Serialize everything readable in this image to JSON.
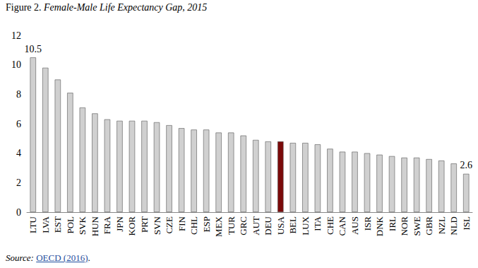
{
  "chart_data": {
    "type": "bar",
    "figure_label": "Figure 2.",
    "title": "Female-Male Life Expectancy Gap, 2015",
    "source": {
      "prefix": "Source:",
      "link": "OECD (2016)",
      "suffix": "."
    },
    "categories": [
      "LTU",
      "LVA",
      "EST",
      "POL",
      "SVK",
      "HUN",
      "FRA",
      "JPN",
      "KOR",
      "PRT",
      "SVN",
      "CZE",
      "FIN",
      "CHL",
      "ESP",
      "MEX",
      "TUR",
      "GRC",
      "AUT",
      "DEU",
      "USA",
      "BEL",
      "LUX",
      "ITA",
      "CHE",
      "CAN",
      "AUS",
      "ISR",
      "DNK",
      "IRL",
      "NOR",
      "SWE",
      "GBR",
      "NZL",
      "NLD",
      "ISL"
    ],
    "values": [
      10.5,
      9.8,
      9.0,
      8.1,
      7.1,
      6.7,
      6.3,
      6.2,
      6.2,
      6.2,
      6.1,
      5.9,
      5.7,
      5.6,
      5.6,
      5.4,
      5.4,
      5.2,
      4.9,
      4.8,
      4.8,
      4.7,
      4.7,
      4.6,
      4.3,
      4.1,
      4.1,
      4.0,
      3.9,
      3.8,
      3.7,
      3.7,
      3.6,
      3.5,
      3.3,
      2.6
    ],
    "colors": [
      "#d0d0d0",
      "#d0d0d0",
      "#d0d0d0",
      "#d0d0d0",
      "#d0d0d0",
      "#d0d0d0",
      "#d0d0d0",
      "#d0d0d0",
      "#d0d0d0",
      "#d0d0d0",
      "#d0d0d0",
      "#d0d0d0",
      "#d0d0d0",
      "#d0d0d0",
      "#d0d0d0",
      "#d0d0d0",
      "#d0d0d0",
      "#d0d0d0",
      "#d0d0d0",
      "#d0d0d0",
      "#7b0a0a",
      "#d0d0d0",
      "#d0d0d0",
      "#d0d0d0",
      "#d0d0d0",
      "#d0d0d0",
      "#d0d0d0",
      "#d0d0d0",
      "#d0d0d0",
      "#d0d0d0",
      "#d0d0d0",
      "#d0d0d0",
      "#d0d0d0",
      "#d0d0d0",
      "#d0d0d0",
      "#d0d0d0"
    ],
    "annotations": [
      {
        "x": "LTU",
        "text": "10.5"
      },
      {
        "x": "ISL",
        "text": "2.6"
      }
    ],
    "ylim": [
      0,
      12
    ],
    "yticks": [
      0,
      2,
      4,
      6,
      8,
      10,
      12
    ],
    "grid": false
  }
}
